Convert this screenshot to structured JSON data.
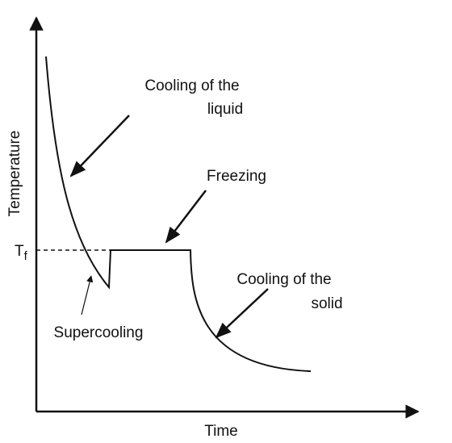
{
  "axes": {
    "y_label": "Temperature",
    "x_label": "Time"
  },
  "freezing_temperature": {
    "main": "T",
    "sub": "f"
  },
  "annotations": {
    "liquid": [
      "Cooling of the",
      "liquid"
    ],
    "freezing": "Freezing",
    "solid": [
      "Cooling of the",
      "solid"
    ],
    "supercooling": "Supercooling"
  }
}
